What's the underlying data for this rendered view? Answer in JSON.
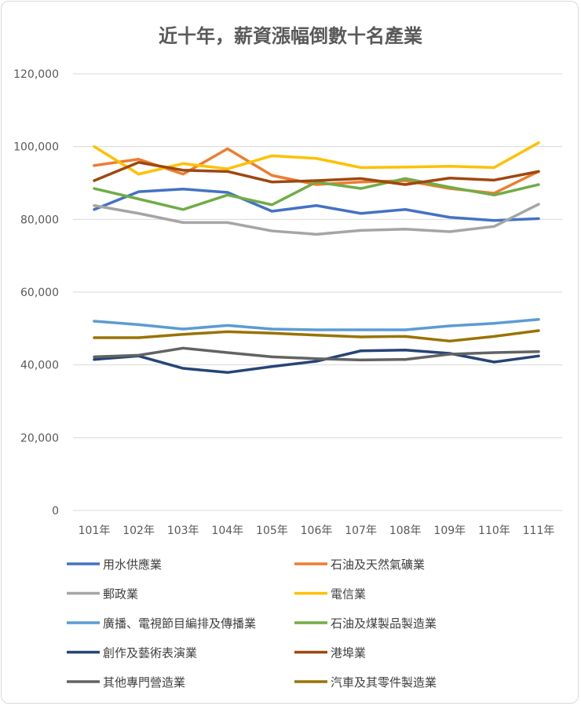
{
  "chart_data": {
    "type": "line",
    "title": "近十年，薪資漲幅倒數十名產業",
    "xlabel": "",
    "ylabel": "",
    "categories": [
      "101年",
      "102年",
      "103年",
      "104年",
      "105年",
      "106年",
      "107年",
      "108年",
      "109年",
      "110年",
      "111年"
    ],
    "ylim": [
      0,
      120000
    ],
    "yticks": [
      "0",
      "20,000",
      "40,000",
      "60,000",
      "80,000",
      "100,000",
      "120,000"
    ],
    "ytick_values": [
      0,
      20000,
      40000,
      60000,
      80000,
      100000,
      120000
    ],
    "grid": true,
    "legend": "bottom",
    "series": [
      {
        "name": "用水供應業",
        "color": "#4472C4",
        "values": [
          82710,
          87610,
          88330,
          87400,
          82220,
          83800,
          81640,
          82710,
          80560,
          79690,
          80210
        ]
      },
      {
        "name": "石油及天然氣礦業",
        "color": "#ED7D31",
        "values": [
          94800,
          96530,
          92430,
          99420,
          92080,
          89560,
          90270,
          90640,
          88480,
          87180,
          93160
        ]
      },
      {
        "name": "郵政業",
        "color": "#A5A5A5",
        "values": [
          83800,
          81640,
          79130,
          79130,
          76820,
          75900,
          76980,
          77320,
          76610,
          78060,
          84160
        ]
      },
      {
        "name": "電信業",
        "color": "#FFC000",
        "values": [
          99980,
          92430,
          95320,
          93870,
          97480,
          96750,
          94240,
          94370,
          94590,
          94240,
          101060
        ]
      },
      {
        "name": "廣播、電視節目編排及傳播業",
        "color": "#5B9BD5",
        "values": [
          52010,
          51080,
          49850,
          50860,
          49850,
          49630,
          49630,
          49630,
          50710,
          51430,
          52500
        ]
      },
      {
        "name": "石油及煤製品製造業",
        "color": "#70AD47",
        "values": [
          88480,
          85600,
          82710,
          86690,
          84010,
          90270,
          88480,
          91220,
          88840,
          86690,
          89560
        ]
      },
      {
        "name": "創作及藝術表演業",
        "color": "#264478",
        "values": [
          41500,
          42450,
          39060,
          37920,
          39560,
          41000,
          43870,
          44090,
          43160,
          40790,
          42450
        ]
      },
      {
        "name": "港埠業",
        "color": "#9E480E",
        "values": [
          90640,
          95670,
          93510,
          93160,
          90270,
          90640,
          91220,
          89560,
          91350,
          90790,
          93160
        ]
      },
      {
        "name": "其他專門營造業",
        "color": "#636363",
        "values": [
          42230,
          42660,
          44610,
          43380,
          42230,
          41710,
          41370,
          41500,
          42940,
          43380,
          43660
        ]
      },
      {
        "name": "汽車及其零件製造業",
        "color": "#997300",
        "values": [
          47480,
          47480,
          48400,
          49140,
          48710,
          48190,
          47690,
          47840,
          46550,
          47840,
          49420
        ]
      }
    ]
  }
}
